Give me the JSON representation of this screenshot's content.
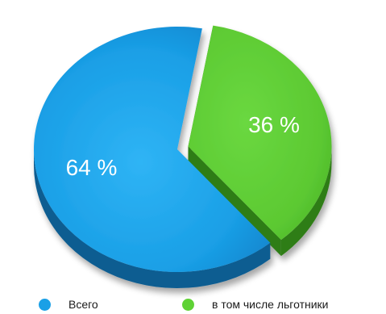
{
  "chart_data": {
    "type": "pie",
    "categories": [
      "Всего",
      "в том числе льготники"
    ],
    "values": [
      64,
      36
    ],
    "labels": [
      "64 %",
      "36 %"
    ],
    "colors": [
      "#1aa0e6",
      "#5fd235"
    ],
    "legend_position": "bottom"
  }
}
